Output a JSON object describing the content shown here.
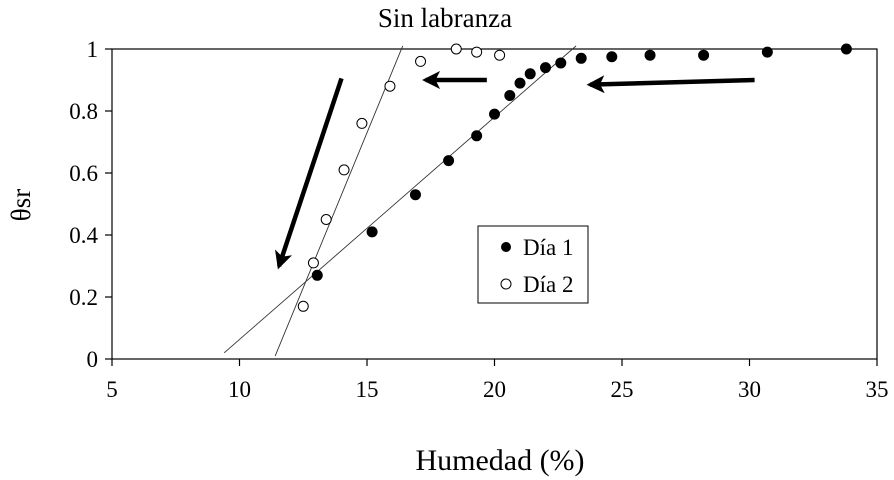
{
  "chart_data": {
    "type": "scatter",
    "title": "Sin labranza",
    "xlabel": "Humedad (%)",
    "ylabel": "θsr",
    "xlim": [
      5,
      35
    ],
    "ylim": [
      0,
      1
    ],
    "xticks": [
      5,
      10,
      15,
      20,
      25,
      30,
      35
    ],
    "yticks": [
      0,
      0.2,
      0.4,
      0.6,
      0.8,
      1
    ],
    "grid": false,
    "legend_placement": "center-right",
    "series": [
      {
        "name": "Día 1",
        "marker": "filled-circle",
        "color": "#000000",
        "points": [
          [
            13.05,
            0.27
          ],
          [
            15.2,
            0.41
          ],
          [
            16.9,
            0.53
          ],
          [
            18.2,
            0.64
          ],
          [
            19.3,
            0.72
          ],
          [
            20.0,
            0.79
          ],
          [
            20.6,
            0.85
          ],
          [
            21.0,
            0.89
          ],
          [
            21.4,
            0.92
          ],
          [
            22.0,
            0.94
          ],
          [
            22.6,
            0.955
          ],
          [
            23.4,
            0.97
          ],
          [
            24.6,
            0.975
          ],
          [
            26.1,
            0.98
          ],
          [
            28.2,
            0.98
          ],
          [
            30.7,
            0.99
          ],
          [
            33.8,
            1.0
          ]
        ],
        "fit_line": [
          [
            9.4,
            0.02
          ],
          [
            23.2,
            1.01
          ]
        ]
      },
      {
        "name": "Día 2",
        "marker": "open-circle",
        "color": "#000000",
        "points": [
          [
            12.5,
            0.17
          ],
          [
            12.9,
            0.31
          ],
          [
            13.4,
            0.45
          ],
          [
            14.1,
            0.61
          ],
          [
            14.8,
            0.76
          ],
          [
            15.9,
            0.88
          ],
          [
            17.1,
            0.96
          ],
          [
            18.5,
            1.0
          ],
          [
            19.3,
            0.99
          ],
          [
            20.2,
            0.98
          ]
        ],
        "fit_line": [
          [
            11.4,
            0.01
          ],
          [
            16.4,
            1.01
          ]
        ]
      }
    ],
    "arrows": [
      {
        "from": [
          14.0,
          0.905
        ],
        "to": [
          11.55,
          0.3
        ]
      },
      {
        "from": [
          19.7,
          0.9
        ],
        "to": [
          17.3,
          0.9
        ]
      },
      {
        "from": [
          30.2,
          0.9
        ],
        "to": [
          23.75,
          0.885
        ]
      }
    ]
  }
}
